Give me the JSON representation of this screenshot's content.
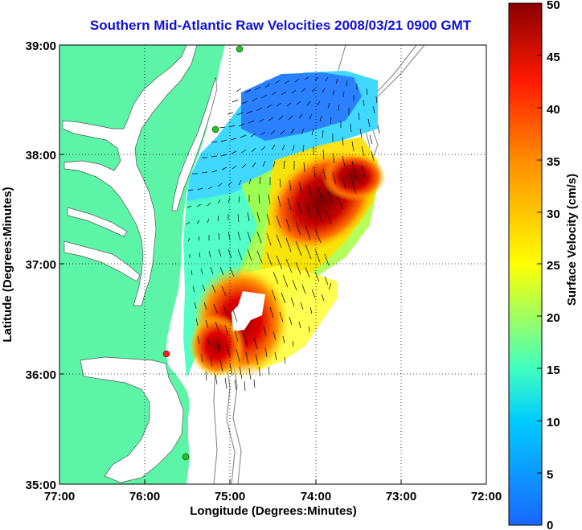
{
  "title": "Southern Mid-Atlantic Raw Velocities 2008/03/21 0900 GMT",
  "x_axis": {
    "label": "Longitude (Degrees:Minutes)",
    "ticks": [
      "77:00",
      "76:00",
      "75:00",
      "74:00",
      "73:00",
      "72:00"
    ]
  },
  "y_axis": {
    "label": "Latitude (Degrees:Minutes)",
    "ticks": [
      "39:00",
      "38:00",
      "37:00",
      "36:00",
      "35:00"
    ]
  },
  "colorbar": {
    "label": "Surface Velocity (cm/s)",
    "min": 0,
    "max": 50,
    "ticks": [
      "0",
      "5",
      "10",
      "15",
      "20",
      "25",
      "30",
      "35",
      "40",
      "45",
      "50"
    ],
    "colors": [
      "#1a66ff",
      "#00d4ff",
      "#40ffc0",
      "#ffff00",
      "#ff8c00",
      "#ff1a00",
      "#8b0000"
    ]
  },
  "colors": {
    "land": "#5cf5a8",
    "water": "#ffffff",
    "title": "#1010d8"
  }
}
